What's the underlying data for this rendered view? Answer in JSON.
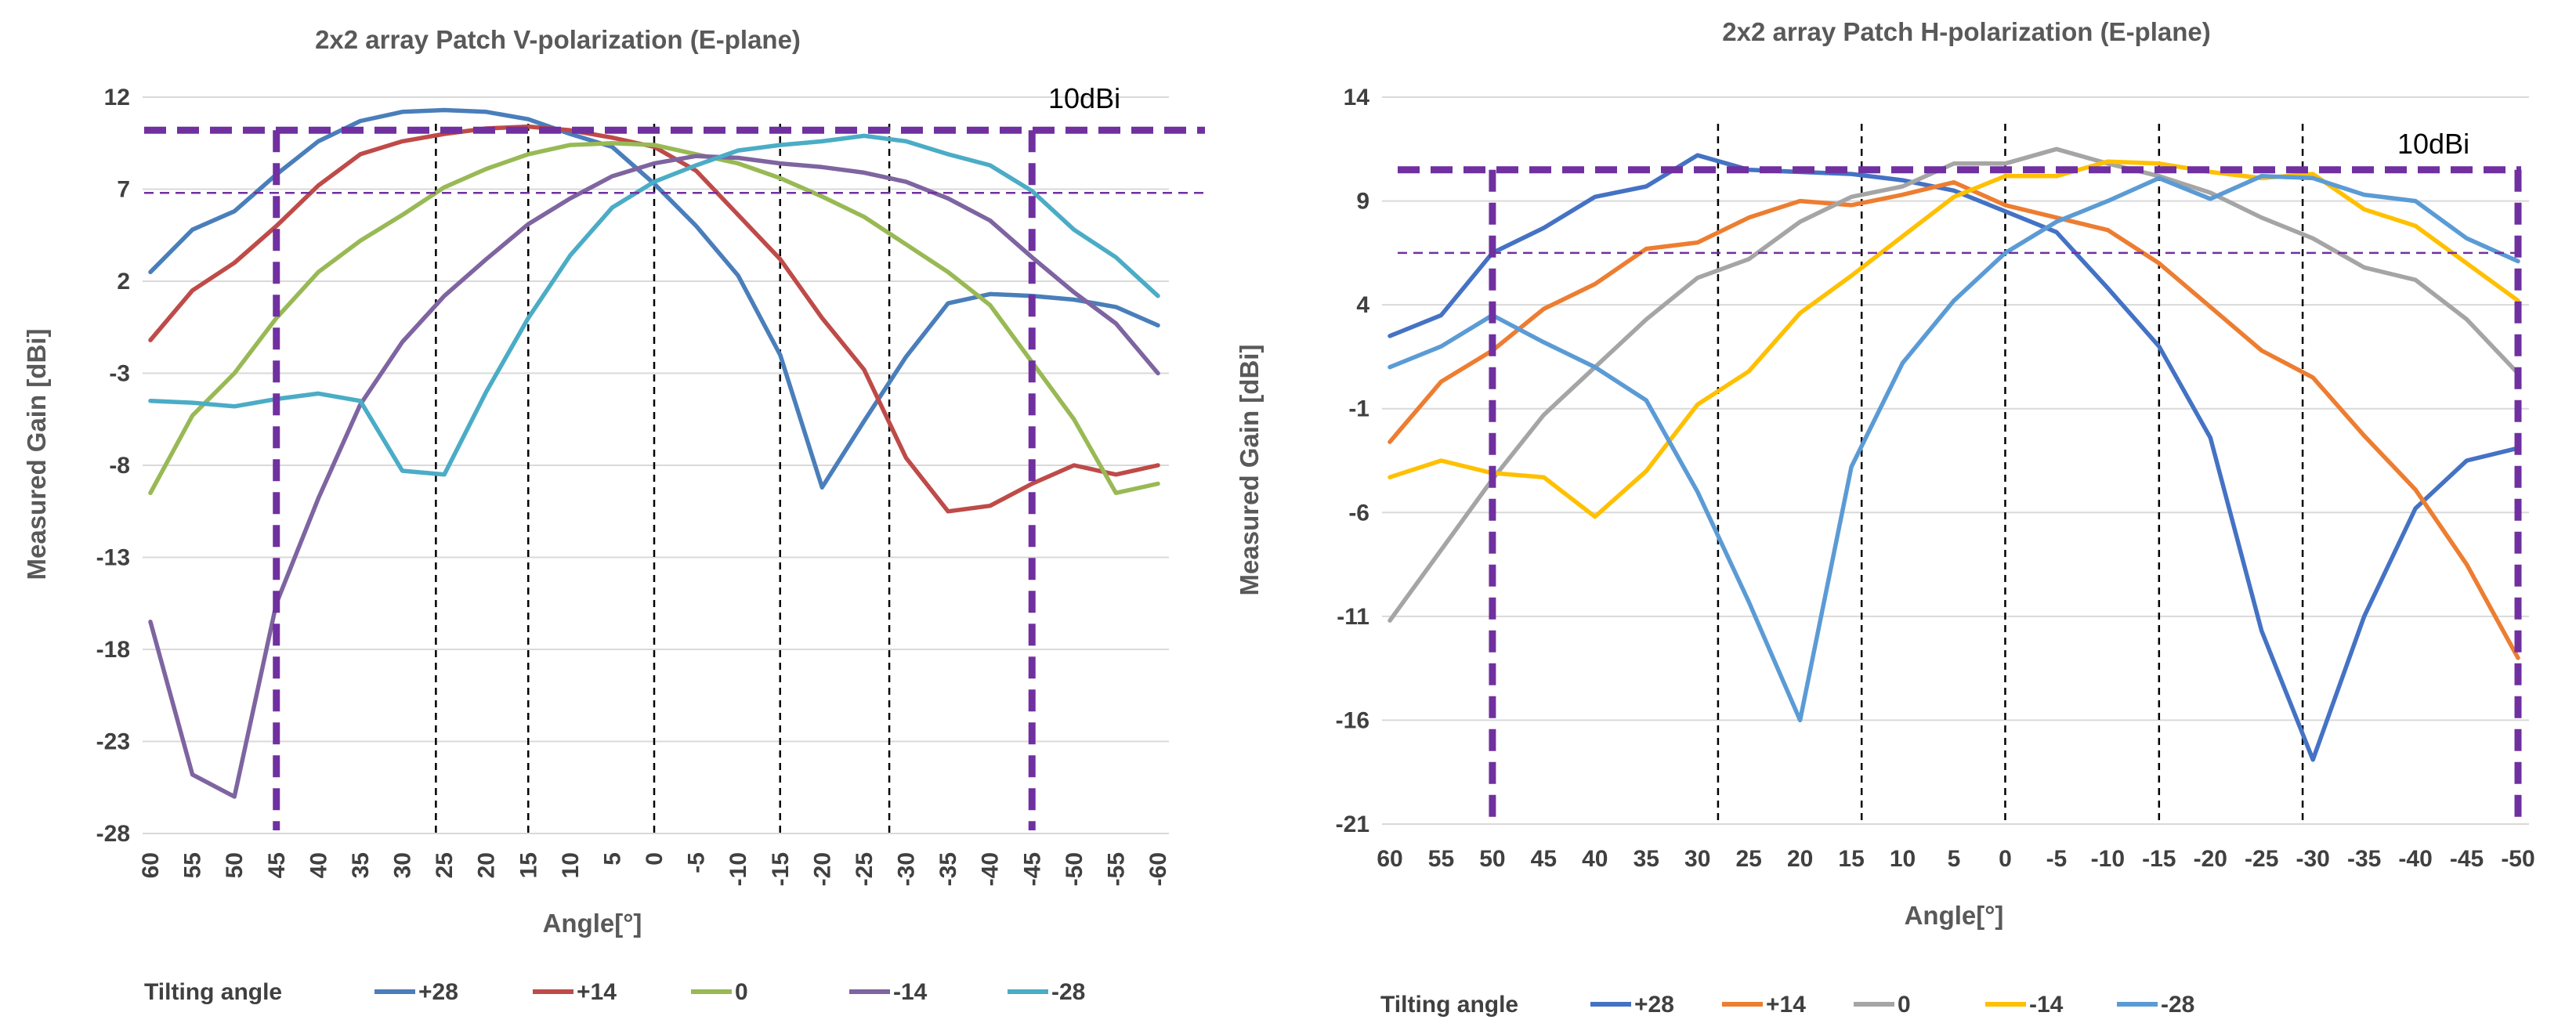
{
  "chart_data": [
    {
      "type": "line",
      "title": "2x2 array  Patch  V-polarization  (E-plane)",
      "xlabel": "Angle[°]",
      "ylabel": "Measured Gain [dBi]",
      "ylim": [
        -28,
        12
      ],
      "yticks": [
        "12",
        "7",
        "2",
        "-3",
        "-8",
        "-13",
        "-18",
        "-23",
        "-28"
      ],
      "categories": [
        "60",
        "55",
        "50",
        "45",
        "40",
        "35",
        "30",
        "25",
        "20",
        "15",
        "10",
        "5",
        "0",
        "-5",
        "-10",
        "-15",
        "-20",
        "-25",
        "-30",
        "-35",
        "-40",
        "-45",
        "-50",
        "-55",
        "-60"
      ],
      "legend_title": "Tilting angle",
      "grid": true,
      "annotation": "10dBi",
      "reference_levels": [
        10.2,
        6.8
      ],
      "vertical_markers": [
        "45",
        "-45"
      ],
      "sector_lines": [
        "26",
        "15",
        "0",
        "-15",
        "-28"
      ],
      "series": [
        {
          "name": "+28",
          "color": "#4A7EBB",
          "values": [
            2.5,
            4.8,
            5.8,
            7.8,
            9.6,
            10.7,
            11.2,
            11.3,
            11.2,
            10.8,
            10.0,
            9.3,
            7.3,
            5.0,
            2.3,
            -2.0,
            -9.2,
            -5.6,
            -2.1,
            0.8,
            1.3,
            1.2,
            1.0,
            0.6,
            -0.4
          ]
        },
        {
          "name": "+14",
          "color": "#BE4B48",
          "values": [
            -1.2,
            1.5,
            3.0,
            5.0,
            7.2,
            8.9,
            9.6,
            10.0,
            10.3,
            10.4,
            10.2,
            9.8,
            9.3,
            8.0,
            5.6,
            3.2,
            0.0,
            -2.8,
            -7.6,
            -10.5,
            -10.2,
            -9.0,
            -8.0,
            -8.5,
            -8.0
          ]
        },
        {
          "name": "0",
          "color": "#98B954",
          "values": [
            -9.5,
            -5.3,
            -3.0,
            0.0,
            2.5,
            4.2,
            5.6,
            7.1,
            8.1,
            8.9,
            9.4,
            9.5,
            9.4,
            8.9,
            8.4,
            7.6,
            6.6,
            5.5,
            4.0,
            2.5,
            0.7,
            -2.4,
            -5.5,
            -9.5,
            -9.0
          ]
        },
        {
          "name": "-14",
          "color": "#7E64A0",
          "values": [
            -16.5,
            -24.8,
            -26.0,
            -15.5,
            -9.8,
            -4.7,
            -1.3,
            1.2,
            3.2,
            5.1,
            6.5,
            7.7,
            8.4,
            8.8,
            8.7,
            8.4,
            8.2,
            7.9,
            7.4,
            6.5,
            5.3,
            3.3,
            1.4,
            -0.3,
            -3.0
          ]
        },
        {
          "name": "-28",
          "color": "#4BACC6",
          "values": [
            -4.5,
            -4.6,
            -4.8,
            -4.4,
            -4.1,
            -4.5,
            -8.3,
            -8.5,
            -4.0,
            0.0,
            3.4,
            6.0,
            7.4,
            8.3,
            9.1,
            9.4,
            9.6,
            9.9,
            9.6,
            8.9,
            8.3,
            6.9,
            4.8,
            3.3,
            1.2
          ]
        }
      ]
    },
    {
      "type": "line",
      "title": "2x2 array  Patch  H-polarization  (E-plane)",
      "xlabel": "Angle[°]",
      "ylabel": "Measured Gain [dBi]",
      "ylim": [
        -21,
        14
      ],
      "yticks": [
        "14",
        "9",
        "4",
        "-1",
        "-6",
        "-11",
        "-16",
        "-21"
      ],
      "categories": [
        "60",
        "55",
        "50",
        "45",
        "40",
        "35",
        "30",
        "25",
        "20",
        "15",
        "10",
        "5",
        "0",
        "-5",
        "-10",
        "-15",
        "-20",
        "-25",
        "-30",
        "-35",
        "-40",
        "-45",
        "-50"
      ],
      "legend_title": "Tilting angle",
      "grid": true,
      "annotation": "10dBi",
      "reference_levels": [
        10.5,
        6.5
      ],
      "vertical_markers": [
        "50",
        "-50"
      ],
      "sector_lines": [
        "28",
        "14",
        "0",
        "-15",
        "-29"
      ],
      "series": [
        {
          "name": "+28",
          "color": "#4472C4",
          "values": [
            2.5,
            3.5,
            6.5,
            7.7,
            9.2,
            9.7,
            11.2,
            10.5,
            10.4,
            10.3,
            10.0,
            9.5,
            8.5,
            7.5,
            4.8,
            2.0,
            -2.4,
            -11.7,
            -17.9,
            -11.0,
            -5.8,
            -3.5,
            -2.9
          ]
        },
        {
          "name": "+14",
          "color": "#ED7D31",
          "values": [
            -2.6,
            0.3,
            1.8,
            3.8,
            5.0,
            6.7,
            7.0,
            8.2,
            9.0,
            8.8,
            9.3,
            9.9,
            8.8,
            8.2,
            7.6,
            6.0,
            3.9,
            1.8,
            0.5,
            -2.3,
            -4.9,
            -8.5,
            -13.0
          ]
        },
        {
          "name": "0",
          "color": "#A5A5A5",
          "values": [
            -11.2,
            -7.8,
            -4.4,
            -1.3,
            1.0,
            3.3,
            5.3,
            6.2,
            8.0,
            9.2,
            9.7,
            10.8,
            10.8,
            11.5,
            10.8,
            10.2,
            9.4,
            8.2,
            7.2,
            5.8,
            5.2,
            3.3,
            0.7
          ]
        },
        {
          "name": "-14",
          "color": "#FFC000",
          "values": [
            -4.3,
            -3.5,
            -4.1,
            -4.3,
            -6.2,
            -4.0,
            -0.8,
            0.8,
            3.6,
            5.4,
            7.3,
            9.2,
            10.2,
            10.2,
            10.9,
            10.8,
            10.4,
            10.1,
            10.3,
            8.6,
            7.8,
            6.0,
            4.2
          ]
        },
        {
          "name": "-28",
          "color": "#5B9BD5",
          "values": [
            1.0,
            2.0,
            3.5,
            2.2,
            1.0,
            -0.6,
            -5.0,
            -10.3,
            -16.0,
            -3.8,
            1.2,
            4.2,
            6.5,
            8.0,
            9.0,
            10.1,
            9.1,
            10.2,
            10.1,
            9.3,
            9.0,
            7.2,
            6.1
          ]
        }
      ]
    }
  ]
}
